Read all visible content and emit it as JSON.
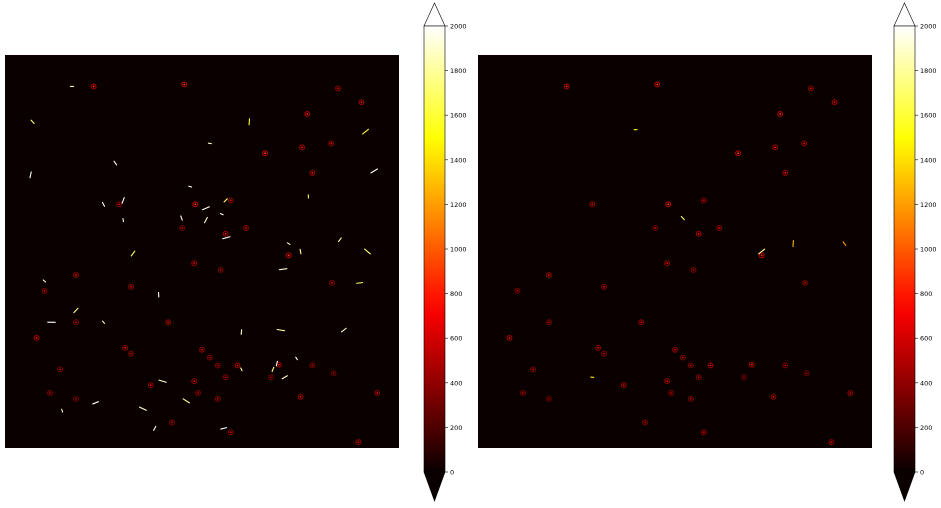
{
  "chart_data": [
    {
      "type": "heatmap",
      "colormap": "hot",
      "clim": [
        0,
        2000
      ],
      "colorbar_ticks": [
        "0",
        "200",
        "400",
        "600",
        "800",
        "1000",
        "1200",
        "1400",
        "1600",
        "1800",
        "2000"
      ],
      "colorbar_extend": "both",
      "axes_visible": false,
      "background_value": 0,
      "sources": [
        [
          0.225,
          0.08,
          900
        ],
        [
          0.455,
          0.075,
          1000
        ],
        [
          0.845,
          0.085,
          700
        ],
        [
          0.905,
          0.12,
          800
        ],
        [
          0.767,
          0.15,
          900
        ],
        [
          0.66,
          0.25,
          1000
        ],
        [
          0.754,
          0.235,
          800
        ],
        [
          0.828,
          0.225,
          700
        ],
        [
          0.483,
          0.38,
          1000
        ],
        [
          0.29,
          0.38,
          700
        ],
        [
          0.573,
          0.37,
          700
        ],
        [
          0.78,
          0.3,
          800
        ],
        [
          0.45,
          0.44,
          600
        ],
        [
          0.612,
          0.44,
          700
        ],
        [
          0.56,
          0.455,
          800
        ],
        [
          0.72,
          0.51,
          900
        ],
        [
          0.48,
          0.53,
          700
        ],
        [
          0.547,
          0.547,
          600
        ],
        [
          0.18,
          0.56,
          700
        ],
        [
          0.1,
          0.6,
          600
        ],
        [
          0.32,
          0.59,
          700
        ],
        [
          0.83,
          0.58,
          600
        ],
        [
          0.414,
          0.68,
          700
        ],
        [
          0.18,
          0.68,
          600
        ],
        [
          0.08,
          0.72,
          800
        ],
        [
          0.305,
          0.745,
          700
        ],
        [
          0.32,
          0.76,
          600
        ],
        [
          0.5,
          0.75,
          700
        ],
        [
          0.52,
          0.77,
          600
        ],
        [
          0.59,
          0.79,
          800
        ],
        [
          0.695,
          0.788,
          800
        ],
        [
          0.78,
          0.79,
          600
        ],
        [
          0.54,
          0.79,
          600
        ],
        [
          0.834,
          0.81,
          500
        ],
        [
          0.14,
          0.8,
          600
        ],
        [
          0.37,
          0.84,
          700
        ],
        [
          0.48,
          0.83,
          700
        ],
        [
          0.56,
          0.82,
          600
        ],
        [
          0.49,
          0.86,
          600
        ],
        [
          0.114,
          0.86,
          600
        ],
        [
          0.18,
          0.875,
          500
        ],
        [
          0.54,
          0.875,
          600
        ],
        [
          0.75,
          0.87,
          700
        ],
        [
          0.945,
          0.86,
          700
        ],
        [
          0.424,
          0.935,
          600
        ],
        [
          0.573,
          0.96,
          700
        ],
        [
          0.897,
          0.985,
          700
        ],
        [
          0.675,
          0.82,
          500
        ]
      ],
      "streaks": [
        [
          0.17,
          0.08,
          1800
        ],
        [
          0.07,
          0.17,
          1700
        ],
        [
          0.62,
          0.17,
          1600
        ],
        [
          0.915,
          0.195,
          1600
        ],
        [
          0.52,
          0.225,
          1900
        ],
        [
          0.28,
          0.275,
          2000
        ],
        [
          0.065,
          0.305,
          2000
        ],
        [
          0.937,
          0.295,
          2000
        ],
        [
          0.47,
          0.335,
          2000
        ],
        [
          0.25,
          0.38,
          2000
        ],
        [
          0.3,
          0.37,
          2000
        ],
        [
          0.51,
          0.39,
          2000
        ],
        [
          0.55,
          0.405,
          2000
        ],
        [
          0.448,
          0.415,
          2000
        ],
        [
          0.51,
          0.42,
          1900
        ],
        [
          0.562,
          0.465,
          2000
        ],
        [
          0.72,
          0.48,
          1900
        ],
        [
          0.75,
          0.5,
          1800
        ],
        [
          0.325,
          0.505,
          1700
        ],
        [
          0.706,
          0.545,
          1900
        ],
        [
          0.1,
          0.575,
          1900
        ],
        [
          0.39,
          0.61,
          2000
        ],
        [
          0.18,
          0.65,
          1800
        ],
        [
          0.118,
          0.68,
          2000
        ],
        [
          0.25,
          0.68,
          1800
        ],
        [
          0.6,
          0.705,
          1900
        ],
        [
          0.86,
          0.7,
          1900
        ],
        [
          0.7,
          0.7,
          1800
        ],
        [
          0.74,
          0.772,
          2000
        ],
        [
          0.69,
          0.785,
          2000
        ],
        [
          0.71,
          0.82,
          1900
        ],
        [
          0.4,
          0.83,
          1900
        ],
        [
          0.6,
          0.8,
          1800
        ],
        [
          0.68,
          0.8,
          1700
        ],
        [
          0.23,
          0.885,
          2000
        ],
        [
          0.35,
          0.9,
          1900
        ],
        [
          0.145,
          0.905,
          1900
        ],
        [
          0.38,
          0.95,
          2000
        ],
        [
          0.555,
          0.95,
          2000
        ],
        [
          0.46,
          0.88,
          1800
        ],
        [
          0.3,
          0.42,
          1900
        ],
        [
          0.85,
          0.47,
          1800
        ],
        [
          0.9,
          0.58,
          1700
        ],
        [
          0.92,
          0.5,
          1700
        ],
        [
          0.77,
          0.36,
          1700
        ],
        [
          0.56,
          0.37,
          1700
        ]
      ]
    },
    {
      "type": "heatmap",
      "colormap": "hot",
      "clim": [
        0,
        2000
      ],
      "colorbar_ticks": [
        "0",
        "200",
        "400",
        "600",
        "800",
        "1000",
        "1200",
        "1400",
        "1600",
        "1800",
        "2000"
      ],
      "colorbar_extend": "both",
      "axes_visible": false,
      "background_value": 0,
      "sources": [
        [
          0.225,
          0.08,
          900
        ],
        [
          0.455,
          0.075,
          1000
        ],
        [
          0.845,
          0.085,
          700
        ],
        [
          0.905,
          0.12,
          800
        ],
        [
          0.767,
          0.15,
          900
        ],
        [
          0.66,
          0.25,
          1000
        ],
        [
          0.754,
          0.235,
          800
        ],
        [
          0.828,
          0.225,
          700
        ],
        [
          0.483,
          0.38,
          1000
        ],
        [
          0.29,
          0.38,
          700
        ],
        [
          0.573,
          0.37,
          700
        ],
        [
          0.78,
          0.3,
          800
        ],
        [
          0.45,
          0.44,
          600
        ],
        [
          0.612,
          0.44,
          700
        ],
        [
          0.56,
          0.455,
          800
        ],
        [
          0.72,
          0.51,
          900
        ],
        [
          0.48,
          0.53,
          700
        ],
        [
          0.547,
          0.547,
          600
        ],
        [
          0.18,
          0.56,
          700
        ],
        [
          0.1,
          0.6,
          600
        ],
        [
          0.32,
          0.59,
          700
        ],
        [
          0.83,
          0.58,
          600
        ],
        [
          0.414,
          0.68,
          700
        ],
        [
          0.18,
          0.68,
          600
        ],
        [
          0.08,
          0.72,
          800
        ],
        [
          0.305,
          0.745,
          700
        ],
        [
          0.32,
          0.76,
          600
        ],
        [
          0.5,
          0.75,
          700
        ],
        [
          0.52,
          0.77,
          600
        ],
        [
          0.59,
          0.79,
          800
        ],
        [
          0.695,
          0.788,
          800
        ],
        [
          0.78,
          0.79,
          600
        ],
        [
          0.54,
          0.79,
          600
        ],
        [
          0.834,
          0.81,
          500
        ],
        [
          0.14,
          0.8,
          600
        ],
        [
          0.37,
          0.84,
          700
        ],
        [
          0.48,
          0.83,
          700
        ],
        [
          0.56,
          0.82,
          600
        ],
        [
          0.49,
          0.86,
          600
        ],
        [
          0.114,
          0.86,
          600
        ],
        [
          0.18,
          0.875,
          500
        ],
        [
          0.54,
          0.875,
          600
        ],
        [
          0.75,
          0.87,
          700
        ],
        [
          0.945,
          0.86,
          700
        ],
        [
          0.424,
          0.935,
          600
        ],
        [
          0.573,
          0.96,
          700
        ],
        [
          0.897,
          0.985,
          700
        ],
        [
          0.675,
          0.82,
          500
        ]
      ],
      "streaks": [
        [
          0.4,
          0.19,
          1500
        ],
        [
          0.52,
          0.415,
          1700
        ],
        [
          0.8,
          0.48,
          1300
        ],
        [
          0.72,
          0.5,
          1800
        ],
        [
          0.29,
          0.82,
          1400
        ],
        [
          0.93,
          0.48,
          1200
        ]
      ]
    }
  ]
}
